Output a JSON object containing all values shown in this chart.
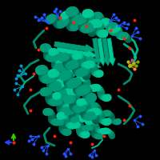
{
  "background": "#000000",
  "teal_dark": "#007A5E",
  "teal_mid": "#009B78",
  "teal_bright": "#00C896",
  "teal_light": "#00B888",
  "shadow": "#005A45",
  "figsize": [
    2.0,
    2.0
  ],
  "dpi": 100,
  "blue_stick": "#2255FF",
  "blue_stick2": "#0099CC",
  "red_dot": "#FF2200",
  "yellow_lig": "#BBBB00",
  "olive_lig": "#88AA00",
  "magenta_lig": "#CC44AA",
  "orange_lig": "#FF8833",
  "axis_green": "#33CC00",
  "axis_blue": "#2244FF"
}
